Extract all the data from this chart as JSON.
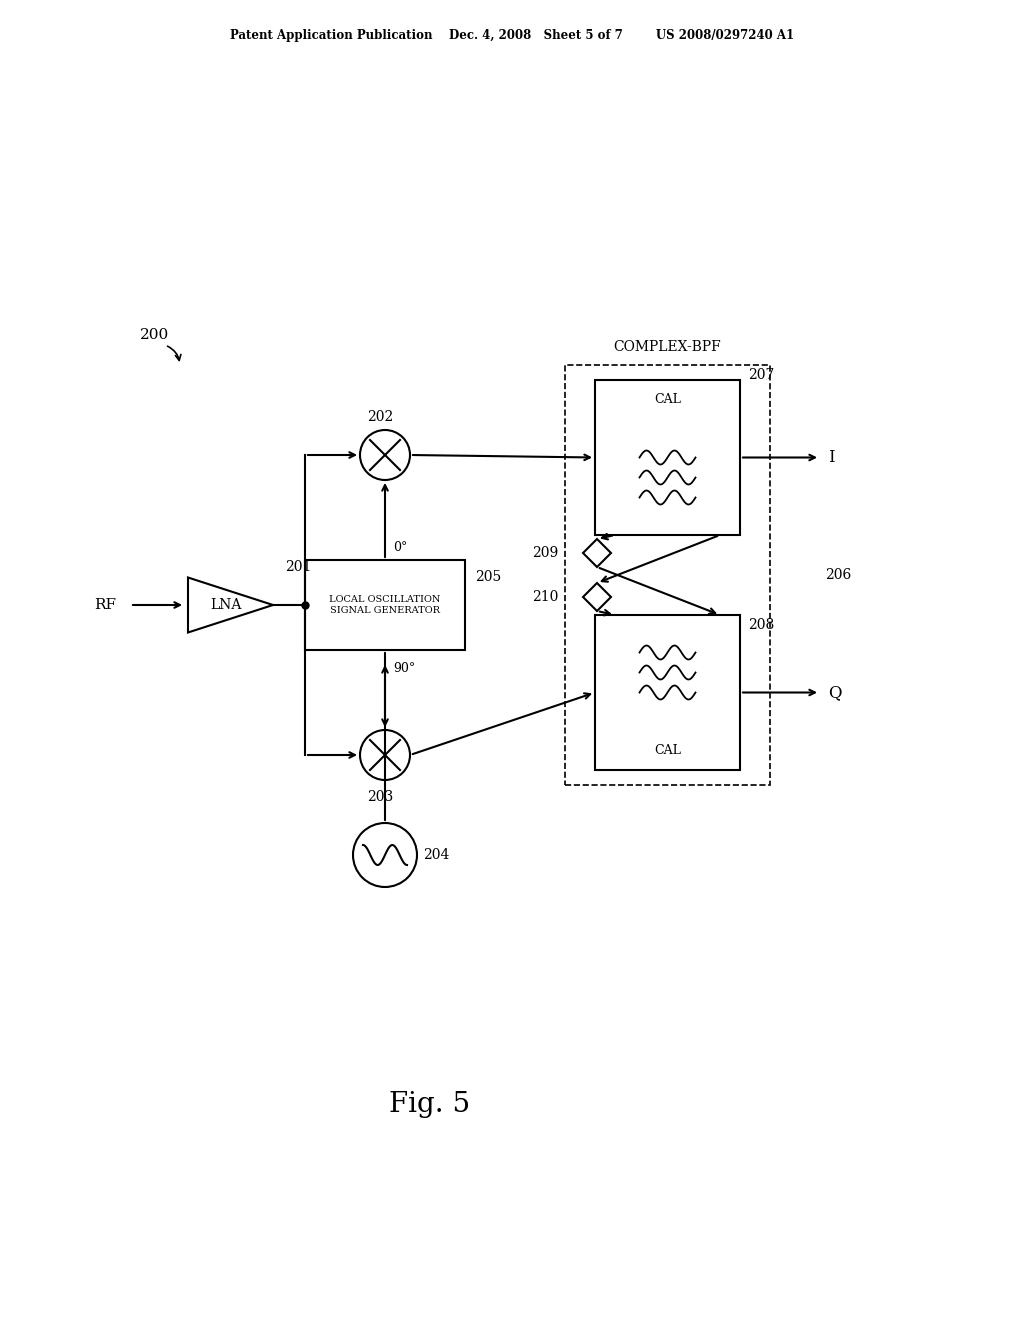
{
  "bg_color": "#ffffff",
  "line_color": "#000000",
  "header_text": "Patent Application Publication    Dec. 4, 2008   Sheet 5 of 7        US 2008/0297240 A1",
  "fig_label": "Fig. 5",
  "diagram_label": "200",
  "complex_bpf_label": "COMPLEX-BPF",
  "label_202": "202",
  "label_201": "201",
  "label_203": "203",
  "label_204": "204",
  "label_205": "205",
  "label_206": "206",
  "label_207": "207",
  "label_208": "208",
  "label_209": "209",
  "label_210": "210",
  "lna_text": "LNA",
  "losg_text": "LOCAL OSCILLATION\nSIGNAL GENERATOR",
  "cal_text": "CAL",
  "rf_text": "RF",
  "i_text": "I",
  "q_text": "Q",
  "deg0_text": "0°",
  "deg90_text": "90°"
}
